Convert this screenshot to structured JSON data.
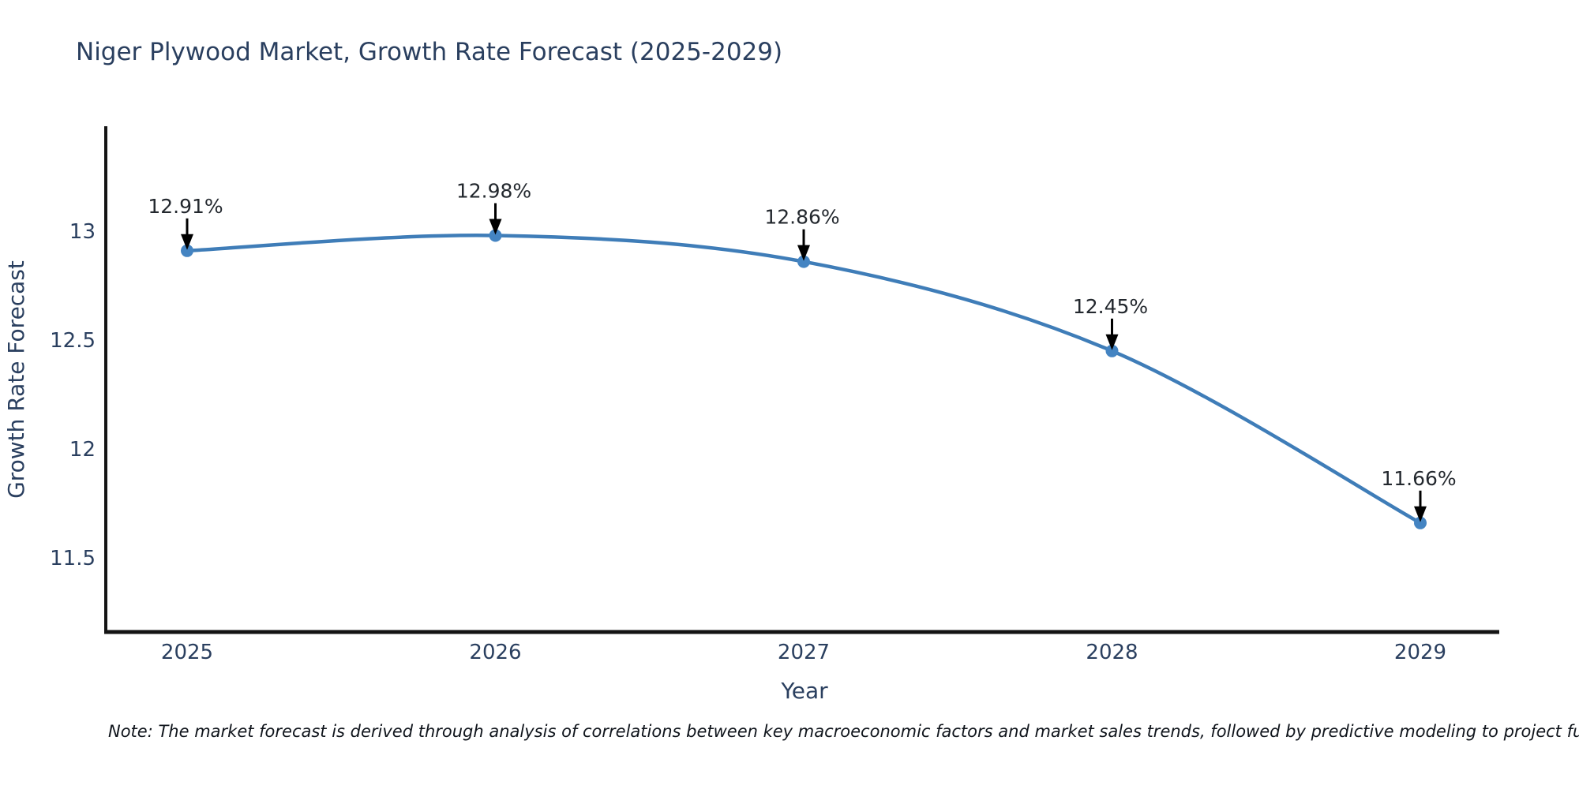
{
  "chart": {
    "title": "Niger Plywood Market, Growth Rate Forecast (2025-2029)",
    "note": "Note: The market forecast is derived through analysis of correlations between key macroeconomic factors and market sales trends, followed by predictive modeling to project future sal"
  },
  "chart_data": {
    "type": "line",
    "title": "Niger Plywood Market, Growth Rate Forecast (2025-2029)",
    "xlabel": "Year",
    "ylabel": "Growth Rate Forecast",
    "x": [
      2025,
      2026,
      2027,
      2028,
      2029
    ],
    "series": [
      {
        "name": "Growth Rate Forecast",
        "values": [
          12.91,
          12.98,
          12.86,
          12.45,
          11.66
        ],
        "point_labels": [
          "12.91%",
          "12.98%",
          "12.86%",
          "12.45%",
          "11.66%"
        ]
      }
    ],
    "y_ticks": [
      "11.5",
      "12",
      "12.5",
      "13"
    ],
    "y_tick_values": [
      11.5,
      12,
      12.5,
      13
    ],
    "ylim": [
      11.16,
      13.48
    ],
    "line_shape": "spline",
    "grid": false,
    "legend_position": "none",
    "colors": {
      "line": "#3f7db8",
      "marker": "#4484c2",
      "axis_line": "#141414",
      "axis_text": "#2a3f5f",
      "annotation_text": "#23282e",
      "arrow": "#000000",
      "background": "#ffffff"
    }
  }
}
